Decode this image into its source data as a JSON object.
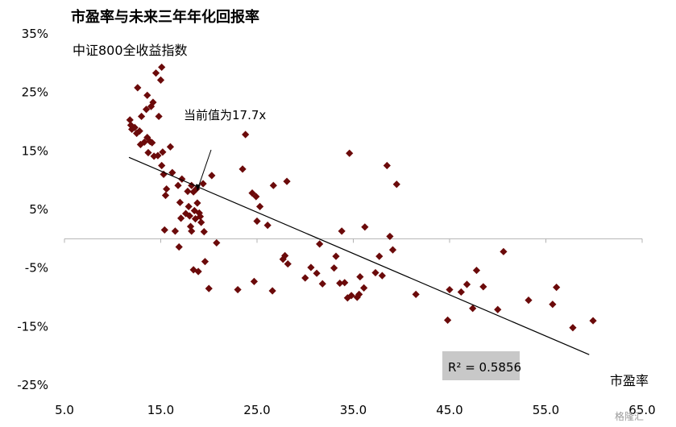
{
  "chart_data": {
    "type": "scatter",
    "title": "市盈率与未来三年年化回报率",
    "subtitle": "中证800全收益指数",
    "xlabel": "市盈率",
    "ylabel": "",
    "xlim": [
      5,
      65
    ],
    "ylim": [
      -25,
      35
    ],
    "x_ticks": [
      5,
      15,
      25,
      35,
      45,
      55,
      65
    ],
    "x_tick_labels": [
      "5.0",
      "15.0",
      "25.0",
      "35.0",
      "45.0",
      "55.0",
      "65.0"
    ],
    "y_ticks": [
      35,
      25,
      15,
      5,
      -5,
      -15,
      -25
    ],
    "y_tick_labels": [
      "35%",
      "25%",
      "15%",
      "5%",
      "-5%",
      "-15%",
      "-25%"
    ],
    "grid": false,
    "marker_color": "#6b0a0a",
    "trendline": {
      "x": [
        11.7,
        59.5
      ],
      "y": [
        13.9,
        -19.8
      ],
      "color": "#000000"
    },
    "r_squared_label": "R² = 0.5856",
    "r_squared_box_color": "#c8c8c8",
    "annotation": {
      "text": "当前值为17.7x",
      "x": 18.8,
      "y": 8.1
    },
    "watermark": "格隆汇",
    "points": [
      [
        11.8,
        20.3
      ],
      [
        11.9,
        19.4
      ],
      [
        12.0,
        18.7
      ],
      [
        12.3,
        19.0
      ],
      [
        12.5,
        18.0
      ],
      [
        12.6,
        25.8
      ],
      [
        12.8,
        18.4
      ],
      [
        12.9,
        16.1
      ],
      [
        13.0,
        20.9
      ],
      [
        13.3,
        16.5
      ],
      [
        13.5,
        22.1
      ],
      [
        13.6,
        17.3
      ],
      [
        13.6,
        24.5
      ],
      [
        13.7,
        14.7
      ],
      [
        13.9,
        16.6
      ],
      [
        14.0,
        22.6
      ],
      [
        14.1,
        16.4
      ],
      [
        14.2,
        23.3
      ],
      [
        14.3,
        14.1
      ],
      [
        14.5,
        28.3
      ],
      [
        14.7,
        14.2
      ],
      [
        14.8,
        20.9
      ],
      [
        15.0,
        27.1
      ],
      [
        15.1,
        29.3
      ],
      [
        15.1,
        12.5
      ],
      [
        15.2,
        14.8
      ],
      [
        15.3,
        11.0
      ],
      [
        15.4,
        1.5
      ],
      [
        15.5,
        7.4
      ],
      [
        15.6,
        8.5
      ],
      [
        16.0,
        15.7
      ],
      [
        16.2,
        11.3
      ],
      [
        16.5,
        1.3
      ],
      [
        16.8,
        9.1
      ],
      [
        16.9,
        -1.4
      ],
      [
        17.0,
        6.2
      ],
      [
        17.1,
        3.5
      ],
      [
        17.2,
        10.2
      ],
      [
        17.6,
        4.3
      ],
      [
        17.8,
        8.1
      ],
      [
        17.9,
        5.5
      ],
      [
        18.0,
        3.9
      ],
      [
        18.1,
        2.1
      ],
      [
        18.2,
        1.3
      ],
      [
        18.2,
        9.1
      ],
      [
        18.4,
        8.0
      ],
      [
        18.4,
        -5.3
      ],
      [
        18.5,
        4.8
      ],
      [
        18.6,
        3.4
      ],
      [
        18.7,
        8.5
      ],
      [
        18.8,
        6.1
      ],
      [
        18.9,
        -5.6
      ],
      [
        19.0,
        4.4
      ],
      [
        19.1,
        3.8
      ],
      [
        19.2,
        2.8
      ],
      [
        19.4,
        9.4
      ],
      [
        19.5,
        1.2
      ],
      [
        19.6,
        -3.9
      ],
      [
        20.0,
        -8.5
      ],
      [
        20.3,
        10.8
      ],
      [
        20.8,
        -0.7
      ],
      [
        23.0,
        -8.7
      ],
      [
        23.5,
        11.9
      ],
      [
        23.8,
        17.8
      ],
      [
        24.5,
        7.8
      ],
      [
        24.7,
        -7.3
      ],
      [
        24.9,
        7.2
      ],
      [
        25.0,
        3.0
      ],
      [
        25.3,
        5.5
      ],
      [
        26.1,
        2.3
      ],
      [
        26.6,
        -8.9
      ],
      [
        26.7,
        9.1
      ],
      [
        27.7,
        -3.5
      ],
      [
        27.9,
        -2.9
      ],
      [
        28.1,
        9.8
      ],
      [
        28.2,
        -4.3
      ],
      [
        30.0,
        -6.7
      ],
      [
        30.6,
        -4.9
      ],
      [
        31.2,
        -5.9
      ],
      [
        31.5,
        -0.9
      ],
      [
        31.8,
        -7.7
      ],
      [
        33.0,
        -5.0
      ],
      [
        33.2,
        -3.0
      ],
      [
        33.6,
        -7.6
      ],
      [
        33.8,
        1.3
      ],
      [
        34.1,
        -7.5
      ],
      [
        34.4,
        -10.1
      ],
      [
        34.6,
        14.6
      ],
      [
        34.8,
        -9.7
      ],
      [
        35.4,
        -10.0
      ],
      [
        35.6,
        -9.5
      ],
      [
        35.7,
        -6.5
      ],
      [
        36.1,
        -8.4
      ],
      [
        36.2,
        2.0
      ],
      [
        37.3,
        -5.8
      ],
      [
        37.7,
        -3.0
      ],
      [
        38.0,
        -6.3
      ],
      [
        38.5,
        12.5
      ],
      [
        38.8,
        0.4
      ],
      [
        39.1,
        -1.9
      ],
      [
        39.5,
        9.3
      ],
      [
        41.5,
        -9.5
      ],
      [
        44.8,
        -13.9
      ],
      [
        45.0,
        -8.7
      ],
      [
        46.2,
        -9.1
      ],
      [
        46.8,
        -7.8
      ],
      [
        47.4,
        -11.9
      ],
      [
        47.8,
        -5.4
      ],
      [
        48.5,
        -8.2
      ],
      [
        50.0,
        -12.1
      ],
      [
        50.6,
        -2.2
      ],
      [
        53.2,
        -10.5
      ],
      [
        55.7,
        -11.2
      ],
      [
        56.1,
        -8.3
      ],
      [
        57.8,
        -15.2
      ],
      [
        59.9,
        -14.0
      ]
    ]
  }
}
